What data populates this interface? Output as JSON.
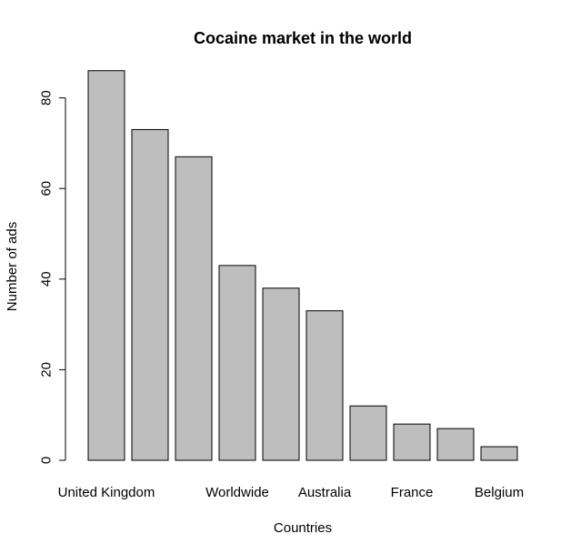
{
  "chart_data": {
    "type": "bar",
    "title": "Cocaine market in the world",
    "xlabel": "Countries",
    "ylabel": "Number of ads",
    "categories": [
      "United Kingdom",
      "",
      "",
      "Worldwide",
      "",
      "Australia",
      "",
      "France",
      "",
      "Belgium"
    ],
    "values": [
      86,
      73,
      67,
      43,
      38,
      33,
      12,
      8,
      7,
      3
    ],
    "yticks": [
      0,
      20,
      40,
      60,
      80
    ],
    "ylim": [
      0,
      86
    ],
    "bar_color": "#bebebe",
    "grid": false,
    "legend": "none"
  }
}
